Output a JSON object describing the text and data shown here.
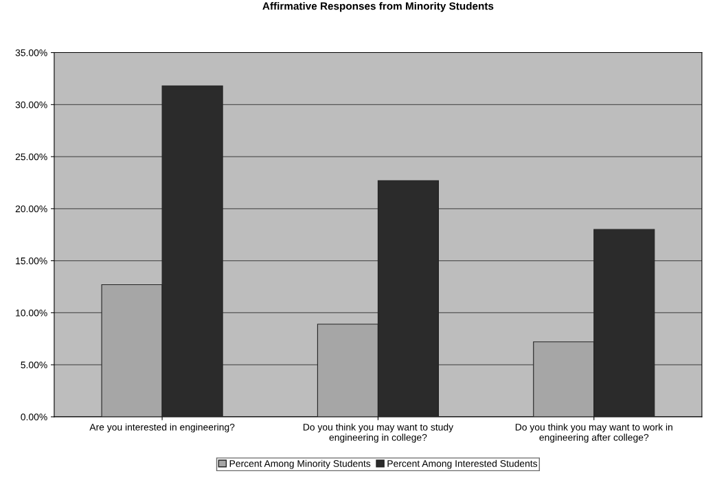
{
  "chart_data": {
    "type": "bar",
    "title": "Affirmative Responses from Minority Students",
    "categories": [
      "Are you interested in engineering?",
      "Do you think you may want to study\nengineering in college?",
      "Do you think you may want to work in\nengineering after college?"
    ],
    "series": [
      {
        "name": "Percent Among Minority Students",
        "color": "#a6a6a6",
        "values": [
          12.7,
          8.9,
          7.2
        ]
      },
      {
        "name": "Percent Among Interested Students",
        "color": "#2b2b2b",
        "values": [
          31.8,
          22.7,
          18.0
        ]
      }
    ],
    "ylim": [
      0,
      35
    ],
    "yticks": [
      {
        "value": 0,
        "label": "0.00%"
      },
      {
        "value": 5,
        "label": "5.00%"
      },
      {
        "value": 10,
        "label": "10.00%"
      },
      {
        "value": 15,
        "label": "15.00%"
      },
      {
        "value": 20,
        "label": "20.00%"
      },
      {
        "value": 25,
        "label": "25.00%"
      },
      {
        "value": 30,
        "label": "30.00%"
      },
      {
        "value": 35,
        "label": "35.00%"
      }
    ],
    "grid": "y",
    "legend": "bottom"
  }
}
